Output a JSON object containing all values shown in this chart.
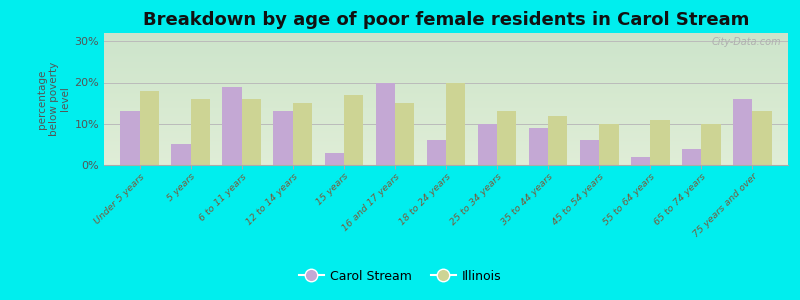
{
  "title": "Breakdown by age of poor female residents in Carol Stream",
  "ylabel": "percentage\nbelow poverty\nlevel",
  "categories": [
    "Under 5 years",
    "5 years",
    "6 to 11 years",
    "12 to 14 years",
    "15 years",
    "16 and 17 years",
    "18 to 24 years",
    "25 to 34 years",
    "35 to 44 years",
    "45 to 54 years",
    "55 to 64 years",
    "65 to 74 years",
    "75 years and over"
  ],
  "carol_stream": [
    13,
    5,
    19,
    13,
    3,
    20,
    6,
    10,
    9,
    6,
    2,
    4,
    16
  ],
  "illinois": [
    18,
    16,
    16,
    15,
    17,
    15,
    20,
    13,
    12,
    10,
    11,
    10,
    13
  ],
  "carol_stream_color": "#c4a8d4",
  "illinois_color": "#cdd494",
  "background_top": "#f0f0e8",
  "background_bottom": "#ddeedd",
  "outer_background": "#00eeee",
  "ylim": [
    0,
    32
  ],
  "yticks": [
    0,
    10,
    20,
    30
  ],
  "ytick_labels": [
    "0%",
    "10%",
    "20%",
    "30%"
  ],
  "title_fontsize": 13,
  "legend_labels": [
    "Carol Stream",
    "Illinois"
  ],
  "watermark": "City-Data.com"
}
